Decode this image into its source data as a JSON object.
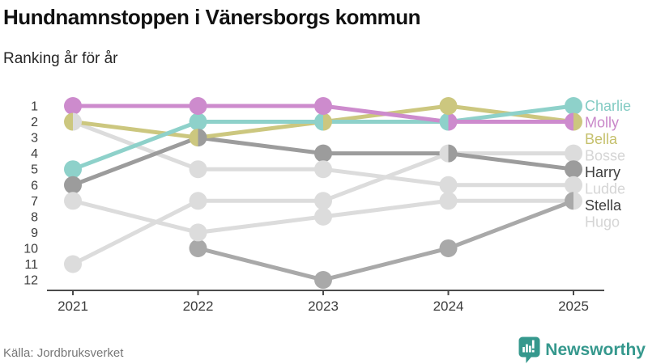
{
  "header": {
    "title": "Hundnamnstoppen i Vänersborgs kommun",
    "subtitle": "Ranking år för år"
  },
  "chart_data": {
    "type": "line",
    "variant": "bump-ranking",
    "title": "Hundnamnstoppen i Vänersborgs kommun",
    "subtitle": "Ranking år för år",
    "x": [
      2021,
      2022,
      2023,
      2024,
      2025
    ],
    "xlabel": "",
    "ylabel": "",
    "ylim": [
      1,
      12
    ],
    "y_inverted": true,
    "yticks": [
      1,
      2,
      3,
      4,
      5,
      6,
      7,
      8,
      9,
      10,
      11,
      12
    ],
    "grid": false,
    "legend_position": "right",
    "series": [
      {
        "name": "Charlie",
        "color": "#8ed1ca",
        "label_color": "#82cbc3",
        "values": [
          5,
          2,
          2,
          2,
          1
        ]
      },
      {
        "name": "Molly",
        "color": "#cd8bcd",
        "label_color": "#c987c9",
        "values": [
          1,
          1,
          1,
          2,
          2
        ]
      },
      {
        "name": "Bella",
        "color": "#ccc77f",
        "label_color": "#c5c06c",
        "values": [
          2,
          3,
          2,
          1,
          2
        ]
      },
      {
        "name": "Bosse",
        "color": "#dcdcdc",
        "label_color": "#d5d5d5",
        "values": [
          11,
          7,
          7,
          4,
          4
        ]
      },
      {
        "name": "Harry",
        "color": "#9c9c9c",
        "label_color": "#3f3f3f",
        "values": [
          6,
          3,
          4,
          4,
          5
        ]
      },
      {
        "name": "Ludde",
        "color": "#dcdcdc",
        "label_color": "#d5d5d5",
        "values": [
          2,
          5,
          5,
          6,
          6
        ]
      },
      {
        "name": "Stella",
        "color": "#a9a9a9",
        "label_color": "#3f3f3f",
        "values": [
          null,
          10,
          12,
          10,
          7
        ]
      },
      {
        "name": "Hugo",
        "color": "#dcdcdc",
        "label_color": "#d5d5d5",
        "values": [
          7,
          9,
          8,
          7,
          7
        ]
      }
    ]
  },
  "footer": {
    "source": "Källa: Jordbruksverket",
    "brand": "Newsworthy"
  },
  "colors": {
    "axis": "#4b4b4b",
    "tick_label": "#3c3c3c",
    "source_text": "#777777",
    "brand_teal": "#35988d",
    "background": "#ffffff"
  }
}
